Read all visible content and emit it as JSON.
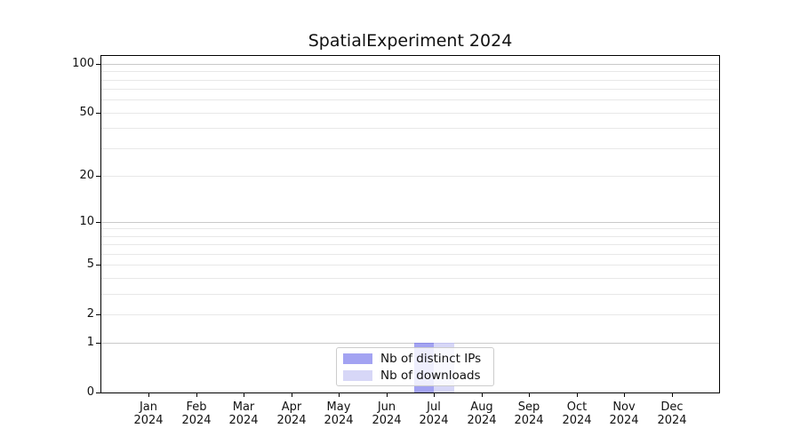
{
  "chart_data": {
    "type": "bar",
    "title": "SpatialExperiment 2024",
    "categories": [
      "Jan 2024",
      "Feb 2024",
      "Mar 2024",
      "Apr 2024",
      "May 2024",
      "Jun 2024",
      "Jul 2024",
      "Aug 2024",
      "Sep 2024",
      "Oct 2024",
      "Nov 2024",
      "Dec 2024"
    ],
    "x_tick_labels": [
      {
        "line1": "Jan",
        "line2": "2024"
      },
      {
        "line1": "Feb",
        "line2": "2024"
      },
      {
        "line1": "Mar",
        "line2": "2024"
      },
      {
        "line1": "Apr",
        "line2": "2024"
      },
      {
        "line1": "May",
        "line2": "2024"
      },
      {
        "line1": "Jun",
        "line2": "2024"
      },
      {
        "line1": "Jul",
        "line2": "2024"
      },
      {
        "line1": "Aug",
        "line2": "2024"
      },
      {
        "line1": "Sep",
        "line2": "2024"
      },
      {
        "line1": "Oct",
        "line2": "2024"
      },
      {
        "line1": "Nov",
        "line2": "2024"
      },
      {
        "line1": "Dec",
        "line2": "2024"
      }
    ],
    "series": [
      {
        "name": "Nb of distinct IPs",
        "color": "#a3a3f2",
        "edge_color": "#8c8ce4",
        "values": [
          0,
          0,
          0,
          0,
          0,
          0,
          1,
          0,
          0,
          0,
          0,
          0
        ]
      },
      {
        "name": "Nb of downloads",
        "color": "#d7d7f7",
        "edge_color": "#c3c3ef",
        "values": [
          0,
          0,
          0,
          0,
          0,
          0,
          1,
          0,
          0,
          0,
          0,
          0
        ]
      }
    ],
    "xlabel": "",
    "ylabel": "",
    "y_scale": "log1p",
    "y_ticks": [
      0,
      1,
      2,
      5,
      10,
      20,
      50,
      100
    ],
    "y_major_grid_values": [
      1,
      10,
      100
    ],
    "y_minor_gridlines": [
      3,
      4,
      6,
      7,
      8,
      9,
      30,
      40,
      60,
      70,
      80,
      90
    ],
    "ylim": [
      0,
      112
    ],
    "grid": "horizontal",
    "legend_position": "lower-center"
  },
  "colors": {
    "grid_major": "#c9c9c9",
    "grid_minor": "#e8e8e8",
    "axis": "#000000",
    "legend_border": "#cccccc",
    "background": "#ffffff"
  }
}
